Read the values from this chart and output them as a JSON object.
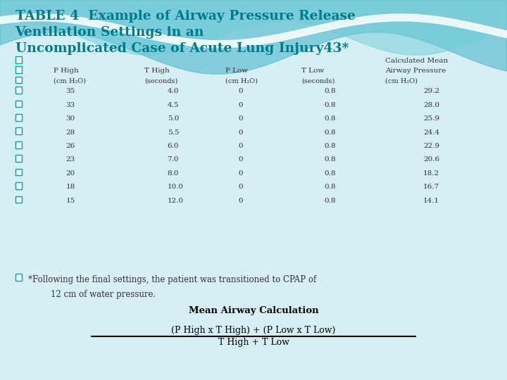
{
  "title_line1": "TABLE 4  Example of Airway Pressure Release",
  "title_line2": "Ventilation Settings in an",
  "title_line3": "Uncomplicated Case of Acute Lung Injury43*",
  "title_color": "#007B8A",
  "bg_color": "#d6eff5",
  "table_data": [
    [
      "35",
      "4.0",
      "0",
      "0.8",
      "29.2"
    ],
    [
      "33",
      "4.5",
      "0",
      "0.8",
      "28.0"
    ],
    [
      "30",
      "5.0",
      "0",
      "0.8",
      "25.9"
    ],
    [
      "28",
      "5.5",
      "0",
      "0.8",
      "24.4"
    ],
    [
      "26",
      "6.0",
      "0",
      "0.8",
      "22.9"
    ],
    [
      "23",
      "7.0",
      "0",
      "0.8",
      "20.6"
    ],
    [
      "20",
      "8.0",
      "0",
      "0.8",
      "18.2"
    ],
    [
      "18",
      "10.0",
      "0",
      "0.8",
      "16.7"
    ],
    [
      "15",
      "12.0",
      "0",
      "0.8",
      "14.1"
    ]
  ],
  "footnote_line1": "*Following the final settings, the patient was transitioned to CPAP of",
  "footnote_line2": "12 cm of water pressure.",
  "formula_label": "Mean Airway Calculation",
  "formula_numerator": "(P High x T High) + (P Low x T Low)",
  "formula_denominator": "T High + T Low",
  "checkbox_color": "#00a0b0",
  "text_color": "#333333"
}
